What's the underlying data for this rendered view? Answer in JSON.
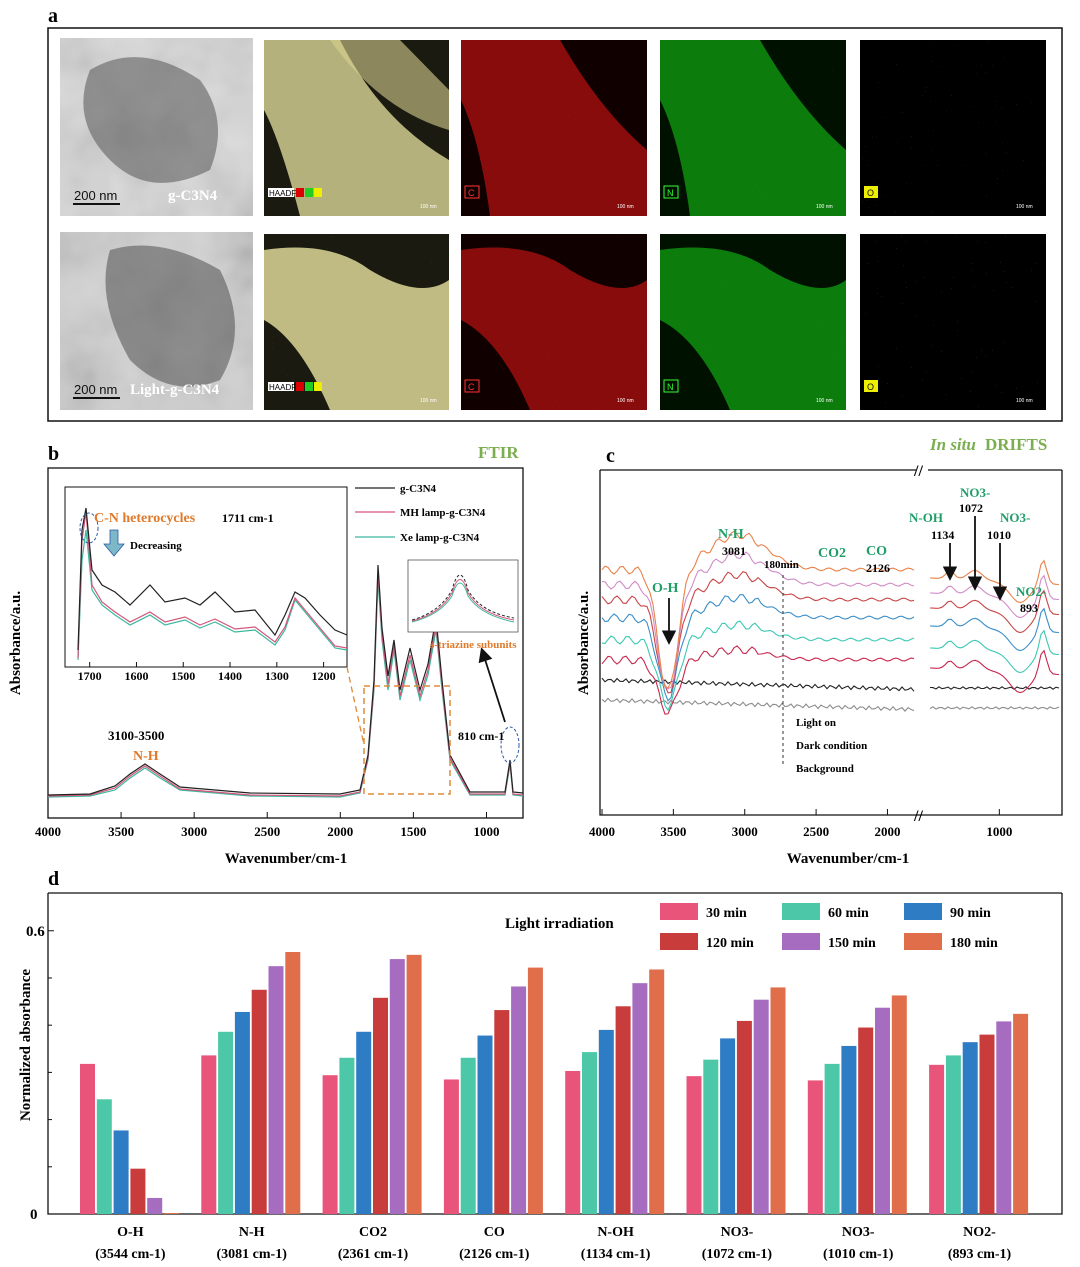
{
  "panel_a": {
    "label": "a",
    "row1": {
      "sample": "g-C3N4",
      "scale_tem": "200 nm",
      "haadf": "HAADF",
      "maps": [
        "C",
        "N",
        "O"
      ],
      "scale_map": "100 nm"
    },
    "row2": {
      "sample": "Light-g-C3N4",
      "scale_tem": "200 nm",
      "haadf": "HAADF",
      "maps": [
        "C",
        "N",
        "O"
      ],
      "scale_map": "100 nm"
    }
  },
  "panel_b": {
    "label": "b",
    "tag": "FTIR",
    "legend": [
      "g-C3N4",
      "MH lamp-g-C3N4",
      "Xe lamp-g-C3N4"
    ],
    "inset_title": "C-N heterocycles",
    "inset_peak": "1711 cm-1",
    "inset_arrow": "Decreasing",
    "triazine": "s-triazine subunits",
    "peak_810": "810 cm-1",
    "nh_range": "3100-3500",
    "nh_label": "N-H"
  },
  "panel_c": {
    "label": "c",
    "tag_italic": "In situ",
    "tag": "DRIFTS",
    "annotations": {
      "oh": "O-H",
      "nh": "N-H",
      "nh_val": "3081",
      "time": "180min",
      "co2": "CO2",
      "co": "CO",
      "co_val": "2126",
      "noh": "N-OH",
      "noh_val": "1134",
      "no3a": "NO3-",
      "no3a_val": "1072",
      "no3b": "NO3-",
      "no3b_val": "1010",
      "no2": "NO2-",
      "no2_val": "893",
      "light_on": "Light on",
      "dark": "Dark condition",
      "bg": "Background"
    }
  },
  "chart_data": [
    {
      "type": "line",
      "title": "FTIR",
      "xlabel": "Wavenumber/cm-1",
      "ylabel": "Absorbance/a.u.",
      "xlim": [
        4000,
        750
      ],
      "xticks": [
        4000,
        3500,
        3000,
        2500,
        2000,
        1500,
        1000
      ],
      "inset_xticks": [
        1700,
        1600,
        1500,
        1400,
        1300,
        1200
      ],
      "series": [
        {
          "name": "g-C3N4",
          "color": "#222222"
        },
        {
          "name": "MH lamp-g-C3N4",
          "color": "#d4567a"
        },
        {
          "name": "Xe lamp-g-C3N4",
          "color": "#3cb8a0"
        }
      ]
    },
    {
      "type": "line",
      "title": "In situ DRIFTS",
      "xlabel": "Wavenumber/cm-1",
      "ylabel": "Absorbance/a.u.",
      "xticks": [
        4000,
        3500,
        3000,
        2500,
        2000,
        1000
      ],
      "series": [
        {
          "name": "Background",
          "color": "#8c8c8c"
        },
        {
          "name": "Dark condition",
          "color": "#222222"
        },
        {
          "name": "30 min",
          "color": "#c8284e"
        },
        {
          "name": "60 min",
          "color": "#3cc8b4"
        },
        {
          "name": "90 min",
          "color": "#3a8ec8"
        },
        {
          "name": "120 min",
          "color": "#c84646"
        },
        {
          "name": "150 min",
          "color": "#d08cc8"
        },
        {
          "name": "180 min",
          "color": "#e8824a"
        }
      ]
    },
    {
      "type": "bar",
      "title": "",
      "xlabel": "",
      "ylabel": "Normalized absorbance",
      "ylim": [
        0,
        0.68
      ],
      "yticks": [
        0,
        0.6
      ],
      "legend_title": "Light irradiation",
      "categories": [
        "O-H (3544 cm-1)",
        "N-H (3081 cm-1)",
        "CO2 (2361 cm-1)",
        "CO (2126 cm-1)",
        "N-OH (1134 cm-1)",
        "NO3- (1072 cm-1)",
        "NO3- (1010 cm-1)",
        "NO2- (893 cm-1)"
      ],
      "category_labels": [
        {
          "name": "O-H",
          "wn": "(3544 cm-1)"
        },
        {
          "name": "N-H",
          "wn": "(3081 cm-1)"
        },
        {
          "name": "CO2",
          "wn": "(2361 cm-1)"
        },
        {
          "name": "CO",
          "wn": "(2126 cm-1)"
        },
        {
          "name": "N-OH",
          "wn": "(1134 cm-1)"
        },
        {
          "name": "NO3-",
          "wn": "(1072 cm-1)"
        },
        {
          "name": "NO3-",
          "wn": "(1010 cm-1)"
        },
        {
          "name": "NO2-",
          "wn": "(893 cm-1)"
        }
      ],
      "series": [
        {
          "name": "30 min",
          "color": "#e8547a",
          "values": [
            0.318,
            0.336,
            0.294,
            0.285,
            0.303,
            0.292,
            0.283,
            0.316
          ]
        },
        {
          "name": "60 min",
          "color": "#4cc8a8",
          "values": [
            0.243,
            0.386,
            0.331,
            0.331,
            0.343,
            0.327,
            0.318,
            0.336
          ]
        },
        {
          "name": "90 min",
          "color": "#2e7cc4",
          "values": [
            0.177,
            0.428,
            0.386,
            0.378,
            0.39,
            0.372,
            0.356,
            0.364
          ]
        },
        {
          "name": "120 min",
          "color": "#c83c3c",
          "values": [
            0.096,
            0.475,
            0.458,
            0.432,
            0.44,
            0.409,
            0.395,
            0.38
          ]
        },
        {
          "name": "150 min",
          "color": "#a66cc0",
          "values": [
            0.034,
            0.525,
            0.54,
            0.482,
            0.489,
            0.454,
            0.437,
            0.408
          ]
        },
        {
          "name": "180 min",
          "color": "#e06e4a",
          "values": [
            0.002,
            0.555,
            0.549,
            0.522,
            0.518,
            0.48,
            0.463,
            0.424
          ]
        }
      ]
    }
  ]
}
